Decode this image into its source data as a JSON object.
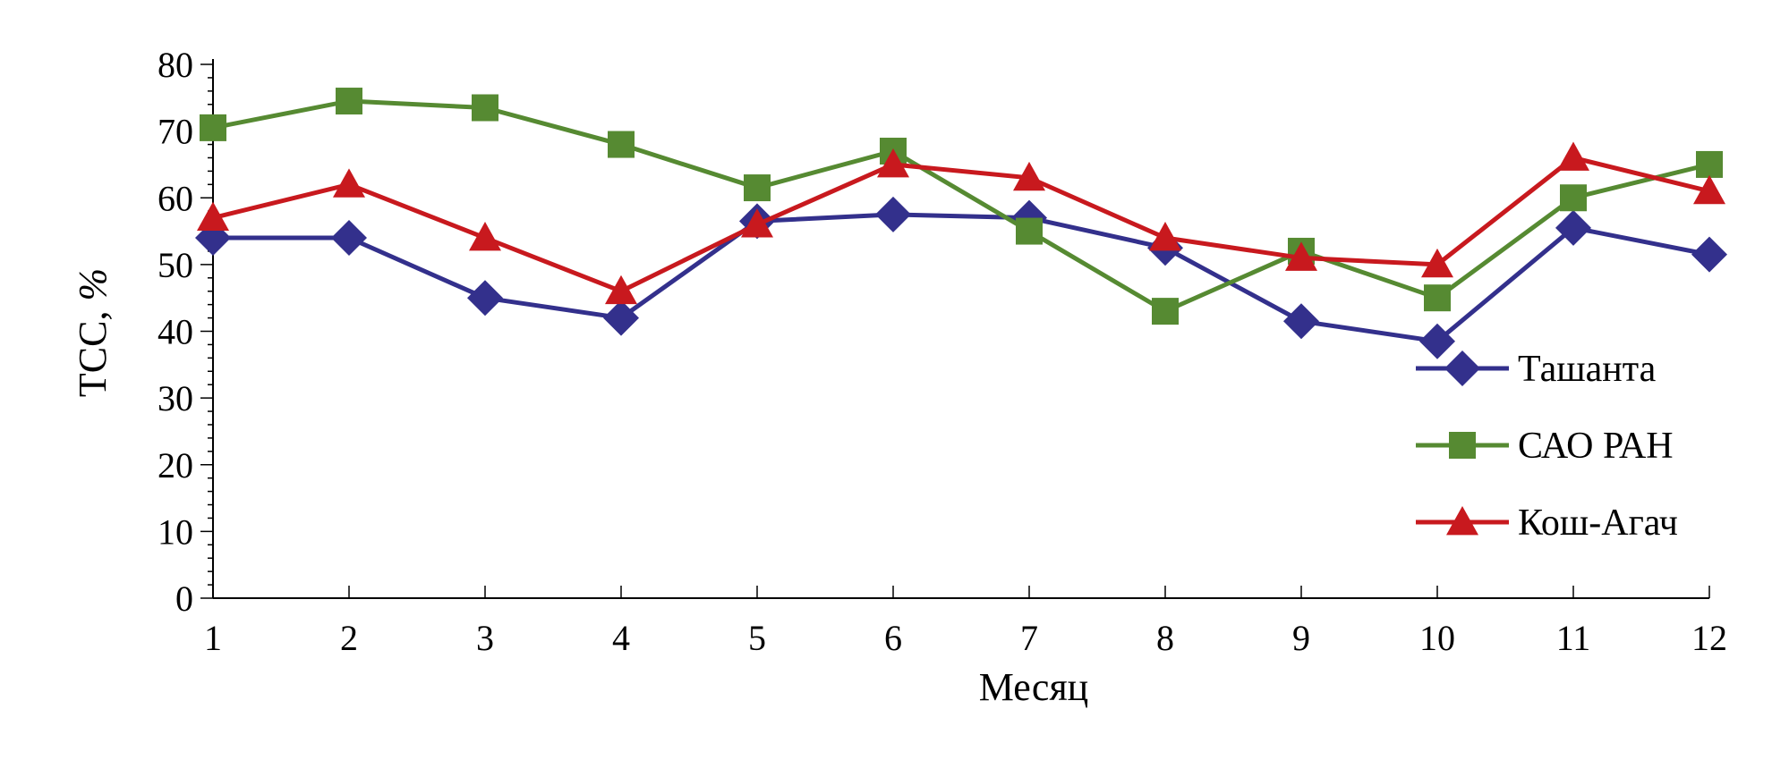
{
  "chart_data": {
    "type": "line",
    "title": "",
    "xlabel": "Месяц",
    "ylabel_main": "ТСС, ",
    "ylabel_unit": "%",
    "x": [
      1,
      2,
      3,
      4,
      5,
      6,
      7,
      8,
      9,
      10,
      11,
      12
    ],
    "x_tick_labels": [
      "1",
      "2",
      "3",
      "4",
      "5",
      "6",
      "7",
      "8",
      "9",
      "10",
      "11",
      "12"
    ],
    "y_ticks": [
      0,
      10,
      20,
      30,
      40,
      50,
      60,
      70,
      80
    ],
    "y_tick_labels": [
      "0",
      "10",
      "20",
      "30",
      "40",
      "50",
      "60",
      "70",
      "80"
    ],
    "ylim": [
      0,
      80
    ],
    "grid": false,
    "legend_position": "right",
    "series": [
      {
        "name": "Ташанта",
        "marker": "diamond",
        "color": "#33308C",
        "values": [
          54,
          54,
          45,
          42,
          56.5,
          57.5,
          57,
          52.5,
          41.5,
          38.5,
          55.5,
          51.5
        ]
      },
      {
        "name": "САО РАН",
        "marker": "square",
        "color": "#568A32",
        "values": [
          70.5,
          74.5,
          73.5,
          68,
          61.5,
          67,
          55,
          43,
          52,
          45,
          60,
          65
        ]
      },
      {
        "name": "Кош-Агач",
        "marker": "triangle",
        "color": "#C8191E",
        "values": [
          57,
          62,
          54,
          46,
          56,
          65,
          63,
          54,
          51,
          50,
          66,
          61
        ]
      }
    ]
  }
}
